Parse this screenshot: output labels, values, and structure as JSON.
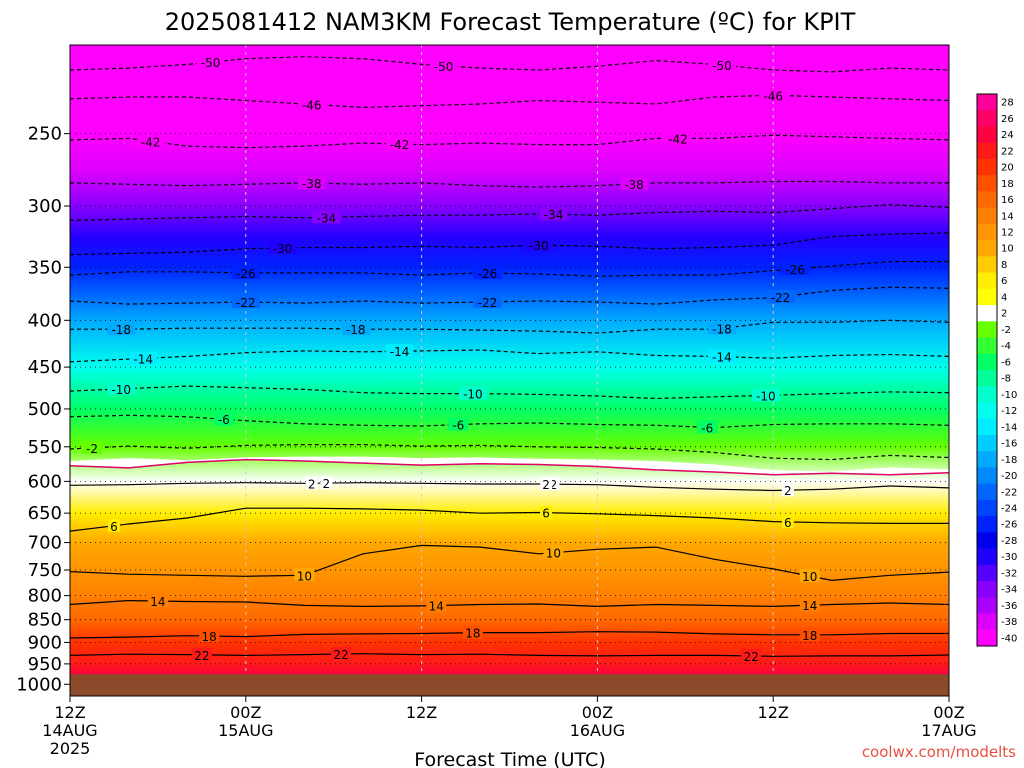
{
  "title": "2025081412 NAM3KM Forecast Temperature (ºC) for KPIT",
  "credit": "coolwx.com/modelts",
  "colors": {
    "ground": "#8b4a2a",
    "freezing_line": "#e0006a",
    "credit": "#e85040"
  },
  "chart_data": {
    "type": "heatmap",
    "title": "2025081412 NAM3KM Forecast Temperature (ºC) for KPIT",
    "xlabel": "Forecast Time (UTC)",
    "ylabel": "",
    "x_range_hours": [
      0,
      60
    ],
    "y_range_hPa": [
      200,
      1030
    ],
    "y_scale": "log",
    "grid": true,
    "legend_position": "right",
    "x_ticks": [
      {
        "hour": 0,
        "lines": [
          "12Z",
          "14AUG",
          "2025"
        ]
      },
      {
        "hour": 12,
        "lines": [
          "00Z",
          "15AUG"
        ]
      },
      {
        "hour": 24,
        "lines": [
          "12Z"
        ]
      },
      {
        "hour": 36,
        "lines": [
          "00Z",
          "16AUG"
        ]
      },
      {
        "hour": 48,
        "lines": [
          "12Z"
        ]
      },
      {
        "hour": 60,
        "lines": [
          "00Z",
          "17AUG"
        ]
      }
    ],
    "y_ticks": [
      "250",
      "300",
      "350",
      "400",
      "450",
      "500",
      "550",
      "600",
      "650",
      "700",
      "750",
      "800",
      "850",
      "900",
      "950",
      "1000"
    ],
    "colorbar_labels": [
      "28",
      "26",
      "24",
      "22",
      "20",
      "18",
      "16",
      "14",
      "12",
      "10",
      "8",
      "6",
      "4",
      "2",
      "-2",
      "-4",
      "-6",
      "-8",
      "-10",
      "-12",
      "-14",
      "-16",
      "-18",
      "-20",
      "-22",
      "-24",
      "-26",
      "-28",
      "-30",
      "-32",
      "-34",
      "-36",
      "-38",
      "-40"
    ],
    "colorbar_colors": [
      "#ff0099",
      "#ff0066",
      "#ff0040",
      "#ff1a1a",
      "#ff3300",
      "#ff5000",
      "#ff6a00",
      "#ff8000",
      "#ff9500",
      "#ffa800",
      "#ffcc00",
      "#ffee00",
      "#ffff00",
      "#ffffff",
      "#66ff00",
      "#33ff33",
      "#00ff66",
      "#00ff99",
      "#00ffcc",
      "#00ffee",
      "#00eeff",
      "#00ccff",
      "#00aaff",
      "#0088ff",
      "#0066ff",
      "#0044ff",
      "#0022ff",
      "#0000ee",
      "#2200ff",
      "#5500ff",
      "#8800ff",
      "#aa00ff",
      "#dd00ff",
      "#ff00ff"
    ],
    "ground_pressure_hPa": 975,
    "freezing_line_pressure_hPa": [
      577,
      580,
      572,
      568,
      570,
      573,
      576,
      574,
      575,
      578,
      583,
      586,
      590,
      588,
      590,
      587
    ],
    "temperature_profile": [
      {
        "pressure": 200,
        "temp": -54
      },
      {
        "pressure": 225,
        "temp": -48
      },
      {
        "pressure": 250,
        "temp": -43
      },
      {
        "pressure": 275,
        "temp": -39
      },
      {
        "pressure": 300,
        "temp": -35
      },
      {
        "pressure": 325,
        "temp": -31
      },
      {
        "pressure": 350,
        "temp": -27
      },
      {
        "pressure": 375,
        "temp": -23
      },
      {
        "pressure": 400,
        "temp": -19
      },
      {
        "pressure": 450,
        "temp": -13
      },
      {
        "pressure": 500,
        "temp": -7
      },
      {
        "pressure": 550,
        "temp": -2
      },
      {
        "pressure": 600,
        "temp": 2
      },
      {
        "pressure": 650,
        "temp": 6
      },
      {
        "pressure": 700,
        "temp": 9
      },
      {
        "pressure": 750,
        "temp": 11
      },
      {
        "pressure": 800,
        "temp": 13
      },
      {
        "pressure": 850,
        "temp": 16
      },
      {
        "pressure": 900,
        "temp": 19
      },
      {
        "pressure": 950,
        "temp": 22
      },
      {
        "pressure": 975,
        "temp": 24
      }
    ],
    "contours": [
      {
        "level": "-50",
        "pressure": [
          213,
          212,
          210,
          207,
          206,
          207,
          210,
          212,
          213,
          211,
          208,
          210,
          213,
          214,
          212,
          213
        ]
      },
      {
        "level": "-46",
        "pressure": [
          229,
          228,
          228,
          230,
          232,
          234,
          233,
          232,
          230,
          231,
          232,
          228,
          227,
          228,
          229,
          230
        ]
      },
      {
        "level": "-42",
        "pressure": [
          254,
          253,
          258,
          259,
          258,
          256,
          257,
          256,
          257,
          257,
          253,
          253,
          251,
          252,
          253,
          254
        ]
      },
      {
        "level": "-38",
        "pressure": [
          283,
          284,
          285,
          284,
          283,
          284,
          283,
          285,
          286,
          285,
          283,
          283,
          282,
          282,
          283,
          283
        ]
      },
      {
        "level": "-34",
        "pressure": [
          311,
          310,
          309,
          308,
          309,
          308,
          307,
          307,
          306,
          307,
          305,
          304,
          305,
          302,
          299,
          301
        ]
      },
      {
        "level": "-30",
        "pressure": [
          339,
          338,
          337,
          334,
          333,
          333,
          332,
          333,
          331,
          332,
          334,
          333,
          331,
          324,
          322,
          321
        ]
      },
      {
        "level": "-26",
        "pressure": [
          357,
          354,
          354,
          355,
          355,
          355,
          357,
          355,
          356,
          358,
          357,
          357,
          353,
          349,
          345,
          345
        ]
      },
      {
        "level": "-22",
        "pressure": [
          381,
          384,
          383,
          382,
          383,
          381,
          383,
          382,
          381,
          382,
          384,
          380,
          378,
          371,
          368,
          369
        ]
      },
      {
        "level": "-18",
        "pressure": [
          409,
          409,
          408,
          408,
          408,
          409,
          409,
          410,
          411,
          413,
          409,
          409,
          402,
          402,
          400,
          402
        ]
      },
      {
        "level": "-14",
        "pressure": [
          444,
          441,
          438,
          434,
          432,
          433,
          432,
          431,
          435,
          433,
          437,
          438,
          440,
          437,
          436,
          438
        ]
      },
      {
        "level": "-10",
        "pressure": [
          478,
          475,
          472,
          474,
          476,
          480,
          481,
          481,
          482,
          484,
          487,
          485,
          483,
          481,
          479,
          480
        ]
      },
      {
        "level": "-6",
        "pressure": [
          510,
          508,
          510,
          515,
          519,
          521,
          522,
          519,
          518,
          520,
          521,
          524,
          520,
          519,
          519,
          521
        ]
      },
      {
        "level": "-2",
        "pressure": [
          553,
          549,
          552,
          548,
          547,
          547,
          549,
          548,
          550,
          551,
          553,
          558,
          566,
          568,
          562,
          565
        ]
      },
      {
        "level": "2",
        "pressure": [
          606,
          605,
          603,
          602,
          603,
          602,
          603,
          604,
          604,
          605,
          609,
          612,
          614,
          612,
          607,
          610
        ]
      },
      {
        "level": "6",
        "pressure": [
          680,
          668,
          658,
          642,
          642,
          643,
          645,
          650,
          649,
          651,
          654,
          658,
          664,
          666,
          667,
          667
        ]
      },
      {
        "level": "10",
        "pressure": [
          753,
          758,
          760,
          762,
          760,
          720,
          705,
          708,
          720,
          712,
          708,
          730,
          748,
          770,
          760,
          754
        ]
      },
      {
        "level": "14",
        "pressure": [
          818,
          810,
          812,
          813,
          820,
          822,
          821,
          818,
          817,
          822,
          818,
          820,
          822,
          818,
          815,
          818
        ]
      },
      {
        "level": "18",
        "pressure": [
          890,
          888,
          885,
          887,
          882,
          881,
          880,
          878,
          878,
          876,
          877,
          881,
          883,
          883,
          880,
          880
        ]
      },
      {
        "level": "22",
        "pressure": [
          930,
          927,
          928,
          930,
          928,
          926,
          928,
          927,
          930,
          931,
          930,
          930,
          932,
          931,
          931,
          929
        ]
      }
    ],
    "contour_labels": [
      {
        "text": "-50",
        "hour": 9.6,
        "level": "-50"
      },
      {
        "text": "-50",
        "hour": 25.5,
        "level": "-50"
      },
      {
        "text": "-50",
        "hour": 44.5,
        "level": "-50"
      },
      {
        "text": "-46",
        "hour": 16.5,
        "level": "-46"
      },
      {
        "text": "-46",
        "hour": 48.0,
        "level": "-46"
      },
      {
        "text": "-42",
        "hour": 5.5,
        "level": "-42"
      },
      {
        "text": "-42",
        "hour": 22.5,
        "level": "-42"
      },
      {
        "text": "-42",
        "hour": 41.5,
        "level": "-42"
      },
      {
        "text": "-38",
        "hour": 16.5,
        "level": "-38"
      },
      {
        "text": "-38",
        "hour": 38.5,
        "level": "-38"
      },
      {
        "text": "-34",
        "hour": 17.5,
        "level": "-34"
      },
      {
        "text": "-34",
        "hour": 33.0,
        "level": "-34"
      },
      {
        "text": "-30",
        "hour": 14.5,
        "level": "-30"
      },
      {
        "text": "-30",
        "hour": 32.0,
        "level": "-30"
      },
      {
        "text": "-26",
        "hour": 12.0,
        "level": "-26"
      },
      {
        "text": "-26",
        "hour": 28.5,
        "level": "-26"
      },
      {
        "text": "-26",
        "hour": 49.5,
        "level": "-26"
      },
      {
        "text": "-22",
        "hour": 12.0,
        "level": "-22"
      },
      {
        "text": "-22",
        "hour": 28.5,
        "level": "-22"
      },
      {
        "text": "-22",
        "hour": 48.5,
        "level": "-22"
      },
      {
        "text": "-18",
        "hour": 3.5,
        "level": "-18"
      },
      {
        "text": "-18",
        "hour": 19.5,
        "level": "-18"
      },
      {
        "text": "-18",
        "hour": 44.5,
        "level": "-18"
      },
      {
        "text": "-14",
        "hour": 5.0,
        "level": "-14"
      },
      {
        "text": "-14",
        "hour": 22.5,
        "level": "-14"
      },
      {
        "text": "-14",
        "hour": 44.5,
        "level": "-14"
      },
      {
        "text": "-10",
        "hour": 3.5,
        "level": "-10"
      },
      {
        "text": "-10",
        "hour": 27.5,
        "level": "-10"
      },
      {
        "text": "-10",
        "hour": 47.5,
        "level": "-10"
      },
      {
        "text": "-6",
        "hour": 10.5,
        "level": "-6"
      },
      {
        "text": "-6",
        "hour": 26.5,
        "level": "-6"
      },
      {
        "text": "-6",
        "hour": 43.5,
        "level": "-6"
      },
      {
        "text": "-2",
        "hour": 1.5,
        "level": "-2"
      },
      {
        "text": "2",
        "hour": 17.5,
        "level": "2"
      },
      {
        "text": "2",
        "hour": 33.0,
        "level": "2"
      },
      {
        "text": "2",
        "hour": 49.0,
        "level": "2"
      },
      {
        "text": "2",
        "hour": 16.5,
        "level": "2"
      },
      {
        "text": "2",
        "hour": 32.5,
        "level": "2"
      },
      {
        "text": "2",
        "hour": 49.0,
        "level": "2"
      },
      {
        "text": "6",
        "hour": 3.0,
        "level": "6"
      },
      {
        "text": "6",
        "hour": 32.5,
        "level": "6"
      },
      {
        "text": "6",
        "hour": 49.0,
        "level": "6"
      },
      {
        "text": "10",
        "hour": 16.0,
        "level": "10"
      },
      {
        "text": "10",
        "hour": 33.0,
        "level": "10"
      },
      {
        "text": "10",
        "hour": 50.5,
        "level": "10"
      },
      {
        "text": "14",
        "hour": 6.0,
        "level": "14"
      },
      {
        "text": "14",
        "hour": 25.0,
        "level": "14"
      },
      {
        "text": "14",
        "hour": 50.5,
        "level": "14"
      },
      {
        "text": "18",
        "hour": 9.5,
        "level": "18"
      },
      {
        "text": "18",
        "hour": 27.5,
        "level": "18"
      },
      {
        "text": "18",
        "hour": 50.5,
        "level": "18"
      },
      {
        "text": "22",
        "hour": 9.0,
        "level": "22"
      },
      {
        "text": "22",
        "hour": 18.5,
        "level": "22"
      },
      {
        "text": "22",
        "hour": 46.5,
        "level": "22"
      }
    ]
  }
}
